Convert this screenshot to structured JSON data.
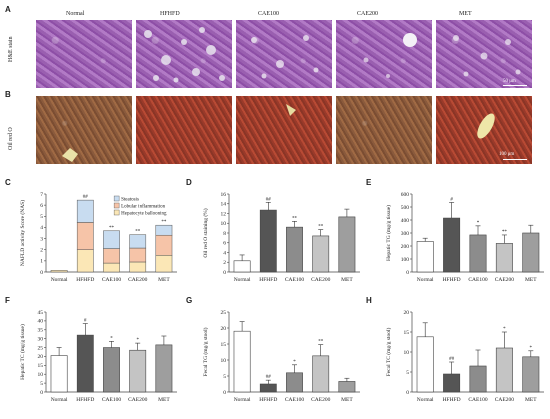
{
  "headers": [
    "Normal",
    "HFHFD",
    "CAE100",
    "CAE200",
    "MET"
  ],
  "row_labels": {
    "a": "H&E stain",
    "b": "Oil red O"
  },
  "panel_letters": {
    "a": "A",
    "b": "B",
    "c": "C",
    "d": "D",
    "e": "E",
    "f": "F",
    "g": "G",
    "h": "H"
  },
  "scale_bars": {
    "a": "50 μm",
    "b": "100 μm"
  },
  "chart_data": [
    {
      "id": "C",
      "type": "bar",
      "stacked": true,
      "categories": [
        "Normal",
        "HFHFD",
        "CAE100",
        "CAE200",
        "MET"
      ],
      "ylabel": "NAFLD activity Score (NAS)",
      "ylim": [
        0,
        7
      ],
      "yticks": [
        0,
        1,
        2,
        3,
        4,
        5,
        6,
        7
      ],
      "series": [
        {
          "name": "Hepatocyte ballooning",
          "values": [
            0.15,
            2.0,
            0.8,
            0.9,
            1.5
          ],
          "color": "#fbe7b6"
        },
        {
          "name": "Lobular inflammation",
          "values": [
            0.0,
            2.45,
            1.3,
            1.25,
            1.8
          ],
          "color": "#f6c4a8"
        },
        {
          "name": "Steatosis",
          "values": [
            0.0,
            2.0,
            1.6,
            1.2,
            0.9
          ],
          "color": "#c8dcf0"
        }
      ],
      "legend_order": [
        "Steatosis",
        "Lobular inflammation",
        "Hepatocyte ballooning"
      ],
      "annotations": [
        "",
        "##",
        "**",
        "**",
        "**"
      ]
    },
    {
      "id": "D",
      "type": "bar",
      "categories": [
        "Normal",
        "HFHFD",
        "CAE100",
        "CAE200",
        "MET"
      ],
      "values": [
        2.3,
        12.7,
        9.2,
        7.4,
        11.3
      ],
      "errors": [
        1.2,
        1.6,
        1.2,
        1.3,
        1.6
      ],
      "colors": [
        "#ffffff",
        "#555555",
        "#8c8c8c",
        "#c4c4c4",
        "#9e9e9e"
      ],
      "ylabel": "Oil red O staining (%)",
      "ylim": [
        0,
        16
      ],
      "yticks": [
        0,
        2,
        4,
        6,
        8,
        10,
        12,
        14,
        16
      ],
      "annotations": [
        "",
        "##",
        "**",
        "**",
        ""
      ]
    },
    {
      "id": "E",
      "type": "bar",
      "categories": [
        "Normal",
        "HFHFD",
        "CAE100",
        "CAE200",
        "MET"
      ],
      "values": [
        235,
        415,
        285,
        220,
        300
      ],
      "errors": [
        25,
        120,
        70,
        65,
        60
      ],
      "colors": [
        "#ffffff",
        "#555555",
        "#8c8c8c",
        "#c4c4c4",
        "#9e9e9e"
      ],
      "ylabel": "Hepatic TG (mg/g tissue)",
      "ylim": [
        0,
        600
      ],
      "yticks": [
        0,
        100,
        200,
        300,
        400,
        500,
        600
      ],
      "annotations": [
        "",
        "#",
        "*",
        "**",
        ""
      ]
    },
    {
      "id": "F",
      "type": "bar",
      "categories": [
        "Normal",
        "HFHFD",
        "CAE100",
        "CAE200",
        "MET"
      ],
      "values": [
        20.5,
        32,
        25,
        23.5,
        26.5
      ],
      "errors": [
        4.5,
        6.5,
        3.5,
        4,
        5
      ],
      "colors": [
        "#ffffff",
        "#555555",
        "#8c8c8c",
        "#c4c4c4",
        "#9e9e9e"
      ],
      "ylabel": "Hepatic TC (mg/g tissue)",
      "ylim": [
        0,
        45
      ],
      "yticks": [
        0,
        5,
        10,
        15,
        20,
        25,
        30,
        35,
        40,
        45
      ],
      "annotations": [
        "",
        "#",
        "*",
        "*",
        ""
      ]
    },
    {
      "id": "G",
      "type": "bar",
      "categories": [
        "Normal",
        "HFHFD",
        "CAE100",
        "CAE200",
        "MET"
      ],
      "values": [
        19,
        2.5,
        6,
        11.3,
        3.3
      ],
      "errors": [
        3,
        1.2,
        2.5,
        3.5,
        1
      ],
      "colors": [
        "#ffffff",
        "#555555",
        "#8c8c8c",
        "#c4c4c4",
        "#9e9e9e"
      ],
      "ylabel": "Fecal TG (mg/g stool)",
      "ylim": [
        0,
        25
      ],
      "yticks": [
        0,
        5,
        10,
        15,
        20,
        25
      ],
      "annotations": [
        "",
        "##",
        "*",
        "**",
        ""
      ]
    },
    {
      "id": "H",
      "type": "bar",
      "categories": [
        "Normal",
        "HFHFD",
        "CAE100",
        "CAE200",
        "MET"
      ],
      "values": [
        13.8,
        4.5,
        6.5,
        11,
        8.8
      ],
      "errors": [
        3.5,
        3,
        4,
        4,
        1.5
      ],
      "colors": [
        "#ffffff",
        "#555555",
        "#8c8c8c",
        "#c4c4c4",
        "#9e9e9e"
      ],
      "ylabel": "Fecal TC (mg/g stool)",
      "ylim": [
        0,
        20
      ],
      "yticks": [
        0,
        5,
        10,
        15,
        20
      ],
      "annotations": [
        "",
        "##",
        "",
        "*",
        "*"
      ]
    }
  ]
}
